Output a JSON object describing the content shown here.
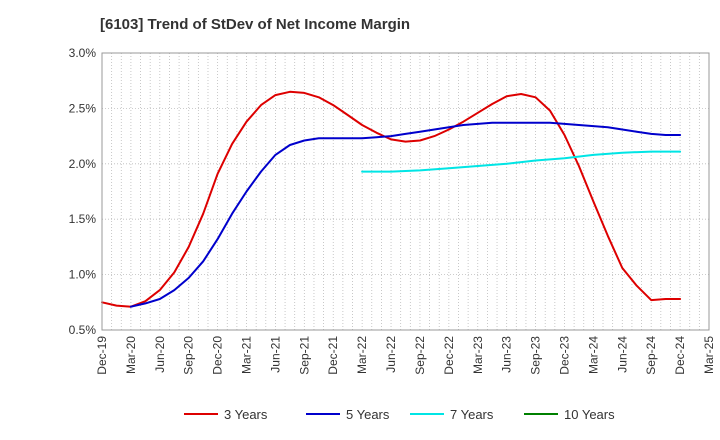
{
  "chart_data": {
    "type": "line",
    "title": "[6103]  Trend of StDev of Net Income Margin",
    "xlabel": "",
    "ylabel": "",
    "ylim": [
      0.5,
      3.0
    ],
    "y_ticks": [
      "0.5%",
      "1.0%",
      "1.5%",
      "2.0%",
      "2.5%",
      "3.0%"
    ],
    "y_tick_values": [
      0.5,
      1.0,
      1.5,
      2.0,
      2.5,
      3.0
    ],
    "x_ticks": [
      "Dec-19",
      "Mar-20",
      "Jun-20",
      "Sep-20",
      "Dec-20",
      "Mar-21",
      "Jun-21",
      "Sep-21",
      "Dec-21",
      "Mar-22",
      "Jun-22",
      "Sep-22",
      "Dec-22",
      "Mar-23",
      "Jun-23",
      "Sep-23",
      "Dec-23",
      "Mar-24",
      "Jun-24",
      "Sep-24",
      "Dec-24",
      "Mar-25"
    ],
    "grid": true,
    "legend_position": "bottom",
    "series": [
      {
        "name": "3 Years",
        "color": "#dd0000",
        "x": [
          0,
          0.5,
          1,
          1.5,
          2,
          2.5,
          3,
          3.5,
          4,
          4.5,
          5,
          5.5,
          6,
          6.5,
          7,
          7.5,
          8,
          8.5,
          9,
          9.5,
          10,
          10.5,
          11,
          11.5,
          12,
          12.5,
          13,
          13.5,
          14,
          14.5,
          15,
          15.5,
          16,
          16.5,
          17,
          17.5,
          18,
          18.5,
          19,
          19.5,
          20
        ],
        "values": [
          0.75,
          0.72,
          0.71,
          0.76,
          0.86,
          1.02,
          1.25,
          1.55,
          1.91,
          2.18,
          2.38,
          2.53,
          2.62,
          2.65,
          2.64,
          2.6,
          2.53,
          2.44,
          2.35,
          2.28,
          2.22,
          2.2,
          2.21,
          2.25,
          2.31,
          2.38,
          2.46,
          2.54,
          2.61,
          2.63,
          2.6,
          2.48,
          2.26,
          1.98,
          1.66,
          1.35,
          1.06,
          0.9,
          0.77,
          0.78,
          0.78
        ]
      },
      {
        "name": "5 Years",
        "color": "#0000cc",
        "x": [
          1,
          1.5,
          2,
          2.5,
          3,
          3.5,
          4,
          4.5,
          5,
          5.5,
          6,
          6.5,
          7,
          7.5,
          8,
          8.5,
          9,
          9.5,
          10,
          10.5,
          11,
          11.5,
          12,
          12.5,
          13,
          13.5,
          14,
          14.5,
          15,
          15.5,
          16,
          16.5,
          17,
          17.5,
          18,
          18.5,
          19,
          19.5,
          20
        ],
        "values": [
          0.71,
          0.74,
          0.78,
          0.86,
          0.97,
          1.12,
          1.32,
          1.55,
          1.75,
          1.93,
          2.08,
          2.17,
          2.21,
          2.23,
          2.23,
          2.23,
          2.23,
          2.24,
          2.25,
          2.27,
          2.29,
          2.31,
          2.33,
          2.35,
          2.36,
          2.37,
          2.37,
          2.37,
          2.37,
          2.37,
          2.36,
          2.35,
          2.34,
          2.33,
          2.31,
          2.29,
          2.27,
          2.26,
          2.26
        ]
      },
      {
        "name": "7 Years",
        "color": "#00e5e5",
        "x": [
          9,
          10,
          11,
          12,
          13,
          14,
          15,
          16,
          17,
          18,
          19,
          20
        ],
        "values": [
          1.93,
          1.93,
          1.94,
          1.96,
          1.98,
          2.0,
          2.03,
          2.05,
          2.08,
          2.1,
          2.11,
          2.11
        ]
      },
      {
        "name": "10 Years",
        "color": "#008000",
        "x": [],
        "values": []
      }
    ]
  }
}
